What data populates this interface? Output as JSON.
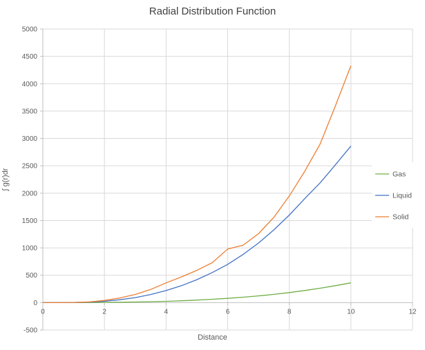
{
  "title": "Radial Distribution Function",
  "colors": {
    "background": "#ffffff",
    "gridline": "#d9d9d9",
    "axis_line": "#bfbfbf",
    "tick_text": "#595959",
    "title_text": "#404040"
  },
  "chart_data": {
    "type": "line",
    "title": "Radial Distribution Function",
    "xlabel": "Distance",
    "ylabel": "∫ g(r)dr",
    "xlim": [
      0,
      12
    ],
    "ylim": [
      -500,
      5000
    ],
    "x_ticks": [
      0,
      2,
      4,
      6,
      8,
      10,
      12
    ],
    "y_ticks": [
      -500,
      0,
      500,
      1000,
      1500,
      2000,
      2500,
      3000,
      3500,
      4000,
      4500,
      5000
    ],
    "grid": true,
    "legend_position": "right-inside",
    "x": [
      0,
      0.5,
      1,
      1.5,
      2,
      2.5,
      3,
      3.5,
      4,
      4.5,
      5,
      5.5,
      6,
      6.5,
      7,
      7.5,
      8,
      8.5,
      9,
      9.5,
      10
    ],
    "series": [
      {
        "name": "Gas",
        "color": "#70AD47",
        "values": [
          0,
          0,
          1,
          2,
          4,
          7,
          11,
          17,
          24,
          34,
          46,
          61,
          78,
          99,
          123,
          151,
          184,
          221,
          263,
          310,
          362
        ]
      },
      {
        "name": "Liquid",
        "color": "#4472C4",
        "values": [
          0,
          0,
          2,
          8,
          25,
          52,
          92,
          148,
          220,
          310,
          420,
          550,
          700,
          880,
          1090,
          1330,
          1600,
          1900,
          2190,
          2520,
          2860
        ]
      },
      {
        "name": "Solid",
        "color": "#ED7D31",
        "values": [
          0,
          0,
          3,
          12,
          40,
          85,
          150,
          240,
          360,
          470,
          590,
          730,
          980,
          1050,
          1260,
          1560,
          1950,
          2400,
          2900,
          3600,
          4330
        ]
      }
    ]
  }
}
